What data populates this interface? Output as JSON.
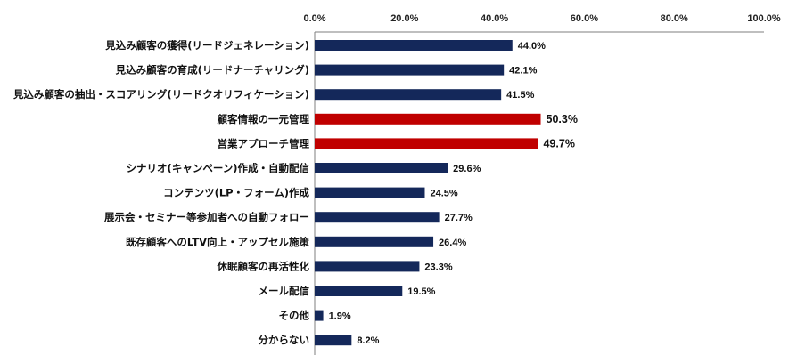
{
  "chart_data": {
    "type": "bar",
    "orientation": "horizontal",
    "title": "",
    "xlabel": "",
    "ylabel": "",
    "xlim": [
      0,
      100
    ],
    "x_ticks": [
      0,
      20,
      40,
      60,
      80,
      100
    ],
    "x_tick_labels": [
      "0.0%",
      "20.0%",
      "40.0%",
      "60.0%",
      "80.0%",
      "100.0%"
    ],
    "categories": [
      "見込み顧客の獲得(リードジェネレーション)",
      "見込み顧客の育成(リードナーチャリング)",
      "見込み顧客の抽出・スコアリング(リードクオリフィケーション)",
      "顧客情報の一元管理",
      "営業アプローチ管理",
      "シナリオ(キャンペーン)作成・自動配信",
      "コンテンツ(LP・フォーム)作成",
      "展示会・セミナー等参加者への自動フォロー",
      "既存顧客へのLTV向上・アップセル施策",
      "休眠顧客の再活性化",
      "メール配信",
      "その他",
      "分からない"
    ],
    "values": [
      44.0,
      42.1,
      41.5,
      50.3,
      49.7,
      29.6,
      24.5,
      27.7,
      26.4,
      23.3,
      19.5,
      1.9,
      8.2
    ],
    "value_labels": [
      "44.0%",
      "42.1%",
      "41.5%",
      "50.3%",
      "49.7%",
      "29.6%",
      "24.5%",
      "27.7%",
      "26.4%",
      "23.3%",
      "19.5%",
      "1.9%",
      "8.2%"
    ],
    "highlighted": [
      false,
      false,
      false,
      true,
      true,
      false,
      false,
      false,
      false,
      false,
      false,
      false,
      false
    ],
    "colors": {
      "bar": "#14285a",
      "highlight": "#c00000",
      "axis": "#7f7f7f"
    }
  }
}
